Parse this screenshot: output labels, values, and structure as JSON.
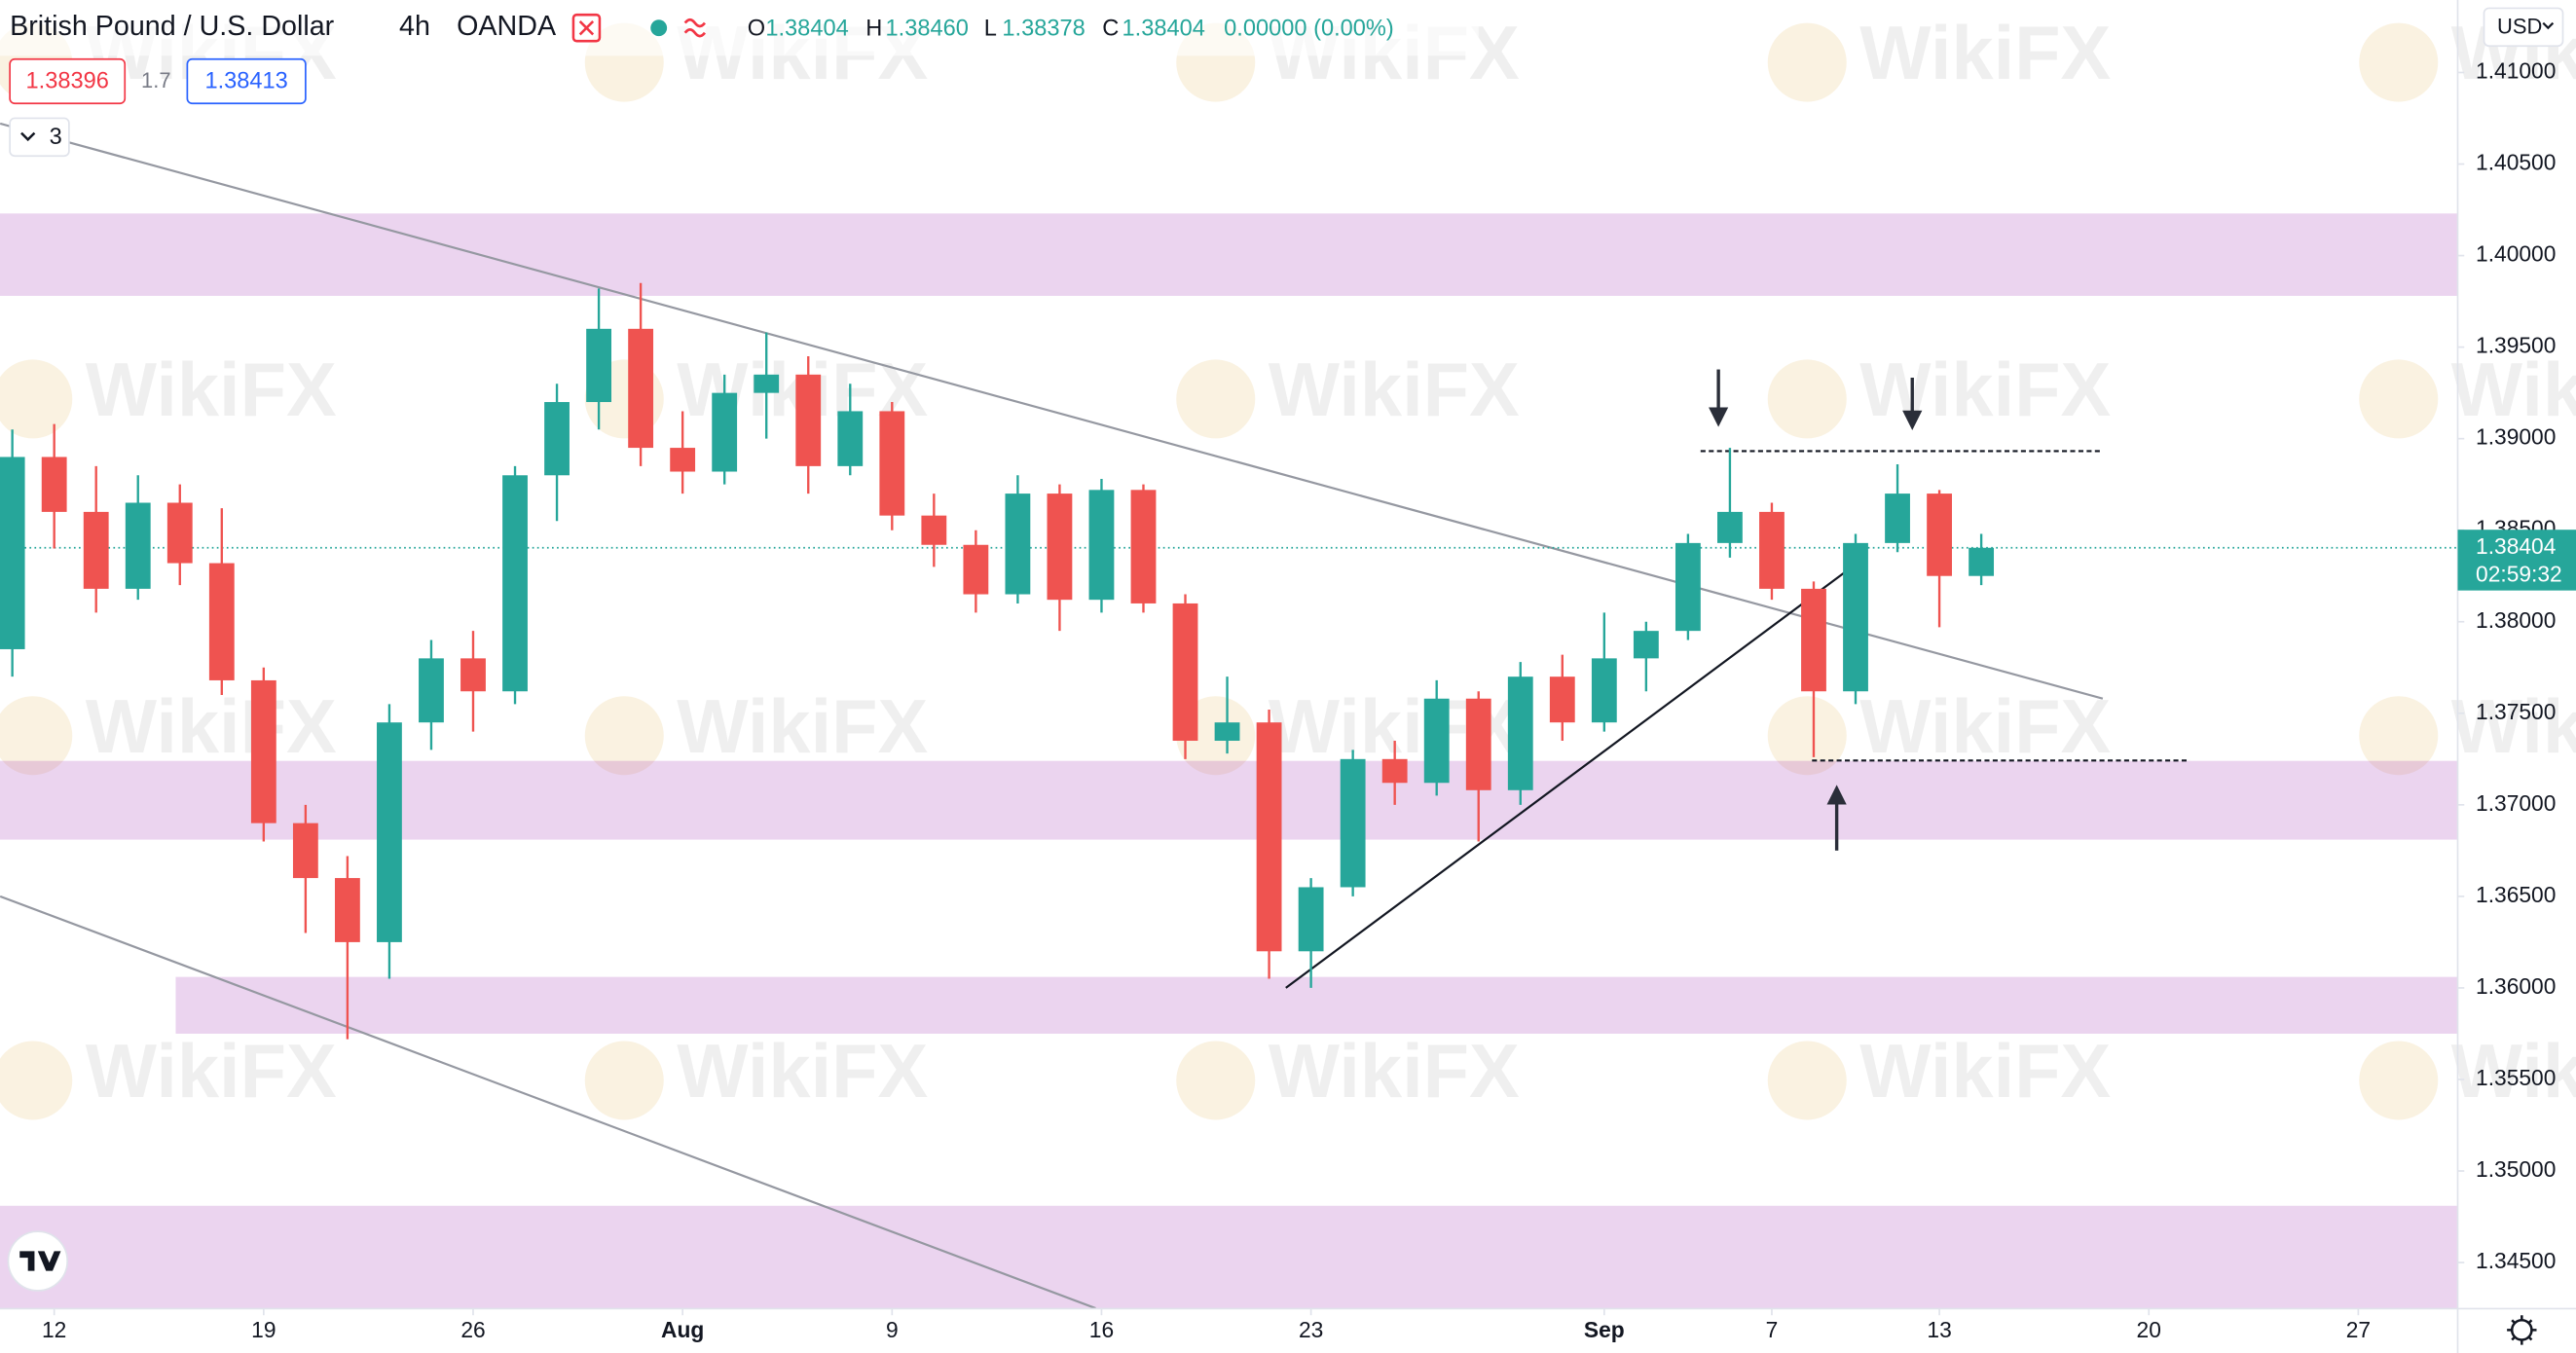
{
  "header": {
    "symbol": "British Pound / U.S. Dollar",
    "interval": "4h",
    "exchange": "OANDA",
    "open_key": "O",
    "open": "1.38404",
    "high_key": "H",
    "high": "1.38460",
    "low_key": "L",
    "low": "1.38378",
    "close_key": "C",
    "close": "1.38404",
    "change": "0.00000 (0.00%)",
    "bid": "1.38396",
    "spread": "1.7",
    "ask": "1.38413",
    "indicators": "3",
    "currency": "USD"
  },
  "watermark": "WikiFX",
  "chart_data": {
    "type": "candlestick",
    "x": [
      -1,
      0,
      1,
      2,
      3,
      4,
      5,
      6,
      7,
      8,
      9,
      10,
      11,
      12,
      13,
      14,
      15,
      16,
      17,
      18,
      19,
      20,
      21,
      22,
      23,
      24,
      25,
      26,
      27,
      28,
      29,
      30,
      31,
      32,
      33,
      34,
      35,
      36,
      37,
      38,
      39,
      40,
      41,
      42,
      43,
      44,
      45,
      46
    ],
    "open": [
      1.3785,
      1.389,
      1.386,
      1.3818,
      1.3865,
      1.3832,
      1.3768,
      1.369,
      1.366,
      1.3625,
      1.3745,
      1.378,
      1.3762,
      1.388,
      1.392,
      1.396,
      1.3895,
      1.3882,
      1.3925,
      1.3935,
      1.3885,
      1.3915,
      1.3858,
      1.3842,
      1.3815,
      1.387,
      1.3812,
      1.3872,
      1.381,
      1.3735,
      1.3745,
      1.362,
      1.3655,
      1.3725,
      1.3712,
      1.3758,
      1.3708,
      1.377,
      1.3745,
      1.378,
      1.3795,
      1.3843,
      1.386,
      1.3818,
      1.3762,
      1.3843,
      1.387,
      1.3825
    ],
    "high": [
      1.3905,
      1.3908,
      1.3885,
      1.388,
      1.3875,
      1.3862,
      1.3775,
      1.37,
      1.3672,
      1.3755,
      1.379,
      1.3795,
      1.3885,
      1.393,
      1.3982,
      1.3985,
      1.3915,
      1.3935,
      1.3958,
      1.3945,
      1.393,
      1.392,
      1.387,
      1.385,
      1.388,
      1.3875,
      1.3878,
      1.3875,
      1.3815,
      1.377,
      1.3752,
      1.366,
      1.373,
      1.3735,
      1.3768,
      1.3762,
      1.3778,
      1.3782,
      1.3805,
      1.38,
      1.3848,
      1.3895,
      1.3865,
      1.3822,
      1.3848,
      1.3886,
      1.3872,
      1.3848
    ],
    "low": [
      1.377,
      1.384,
      1.3805,
      1.3812,
      1.382,
      1.376,
      1.368,
      1.363,
      1.3572,
      1.3605,
      1.373,
      1.374,
      1.3755,
      1.3855,
      1.3905,
      1.3885,
      1.387,
      1.3875,
      1.39,
      1.387,
      1.388,
      1.385,
      1.383,
      1.3805,
      1.381,
      1.3795,
      1.3805,
      1.3805,
      1.3725,
      1.3728,
      1.3605,
      1.36,
      1.365,
      1.37,
      1.3705,
      1.368,
      1.37,
      1.3735,
      1.374,
      1.3762,
      1.379,
      1.3835,
      1.3812,
      1.3726,
      1.3755,
      1.3838,
      1.3797,
      1.382
    ],
    "close": [
      1.389,
      1.386,
      1.3818,
      1.3865,
      1.3832,
      1.3768,
      1.369,
      1.366,
      1.3625,
      1.3745,
      1.378,
      1.3762,
      1.388,
      1.392,
      1.396,
      1.3895,
      1.3882,
      1.3925,
      1.3935,
      1.3885,
      1.3915,
      1.3858,
      1.3842,
      1.3815,
      1.387,
      1.3812,
      1.3872,
      1.381,
      1.3735,
      1.3745,
      1.362,
      1.3655,
      1.3725,
      1.3712,
      1.3758,
      1.3708,
      1.377,
      1.3745,
      1.378,
      1.3795,
      1.3843,
      1.386,
      1.3818,
      1.3762,
      1.3843,
      1.387,
      1.3825,
      1.38404
    ],
    "up_color": "#26a69a",
    "down_color": "#ef5350",
    "xlim": [
      -1.294,
      57.373
    ],
    "xticks": [
      {
        "value": 0,
        "label": "12"
      },
      {
        "value": 5,
        "label": "19"
      },
      {
        "value": 10,
        "label": "26"
      },
      {
        "value": 15,
        "label": "Aug"
      },
      {
        "value": 20,
        "label": "9"
      },
      {
        "value": 25,
        "label": "16"
      },
      {
        "value": 30,
        "label": "23"
      },
      {
        "value": 37,
        "label": "Sep"
      },
      {
        "value": 41,
        "label": "7"
      },
      {
        "value": 45,
        "label": "13"
      },
      {
        "value": 50,
        "label": "20"
      },
      {
        "value": 55,
        "label": "27"
      }
    ],
    "ylim": [
      1.34248,
      1.41396
    ],
    "yticks": [
      {
        "value": 1.41,
        "label": "1.41000"
      },
      {
        "value": 1.405,
        "label": "1.40500"
      },
      {
        "value": 1.4,
        "label": "1.40000"
      },
      {
        "value": 1.395,
        "label": "1.39500"
      },
      {
        "value": 1.39,
        "label": "1.39000"
      },
      {
        "value": 1.385,
        "label": "1.38500"
      },
      {
        "value": 1.38,
        "label": "1.38000"
      },
      {
        "value": 1.375,
        "label": "1.37500"
      },
      {
        "value": 1.37,
        "label": "1.37000"
      },
      {
        "value": 1.365,
        "label": "1.36500"
      },
      {
        "value": 1.36,
        "label": "1.36000"
      },
      {
        "value": 1.355,
        "label": "1.35500"
      },
      {
        "value": 1.35,
        "label": "1.35000"
      },
      {
        "value": 1.345,
        "label": "1.34500"
      }
    ],
    "last_price": 1.38404,
    "last_price_label": "1.38404",
    "countdown": "02:59:32",
    "last_price_color": "#26a69a",
    "zone_color": "rgba(156, 39, 176, 0.2)",
    "zones": [
      {
        "y": [
          1.3978,
          1.4023
        ]
      },
      {
        "y": [
          1.3681,
          1.3724
        ]
      },
      {
        "y": [
          1.3575,
          1.3606
        ],
        "x_start": 2.9
      },
      {
        "y": [
          1.3425,
          1.3481
        ]
      }
    ],
    "trend_lines": [
      {
        "x": [
          -1.29,
          48.9
        ],
        "y": [
          1.40721,
          1.3758
        ],
        "color": "#9598a1"
      },
      {
        "x": [
          -1.29,
          24.86
        ],
        "y": [
          1.365,
          1.3425
        ],
        "color": "#9598a1"
      },
      {
        "x": [
          29.4,
          42.8
        ],
        "y": [
          1.36,
          1.3828
        ],
        "color": "#131722"
      }
    ],
    "levels": [
      {
        "x": [
          39.3,
          48.9
        ],
        "y": 1.38932
      },
      {
        "x": [
          41.96,
          50.98
        ],
        "y": 1.37242
      }
    ]
  }
}
